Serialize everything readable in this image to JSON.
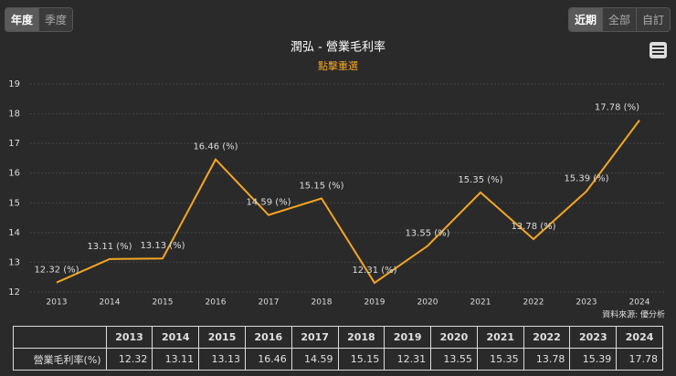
{
  "ui": {
    "period_buttons": [
      "年度",
      "季度"
    ],
    "range_buttons": [
      "近期",
      "全部",
      "自訂"
    ]
  },
  "chart_data": {
    "type": "line",
    "title": "潤弘 - 營業毛利率",
    "subtitle": "點擊重選",
    "categories": [
      "2013",
      "2014",
      "2015",
      "2016",
      "2017",
      "2018",
      "2019",
      "2020",
      "2021",
      "2022",
      "2023",
      "2024"
    ],
    "values": [
      12.32,
      13.11,
      13.13,
      16.46,
      14.59,
      15.15,
      12.31,
      13.55,
      15.35,
      13.78,
      15.39,
      17.78
    ],
    "value_labels": [
      "12.32 (%)",
      "13.11 (%)",
      "13.13 (%)",
      "16.46 (%)",
      "14.59 (%)",
      "15.15 (%)",
      "12.31 (%)",
      "13.55 (%)",
      "15.35 (%)",
      "13.78 (%)",
      "15.39 (%)",
      "17.78 (%)"
    ],
    "color": "#f5a623",
    "ylim": [
      12,
      19
    ],
    "yticks": [
      12,
      13,
      14,
      15,
      16,
      17,
      18,
      19
    ],
    "grid": true,
    "source": "資料來源: 優分析"
  },
  "table": {
    "row_label": "營業毛利率(%)"
  }
}
